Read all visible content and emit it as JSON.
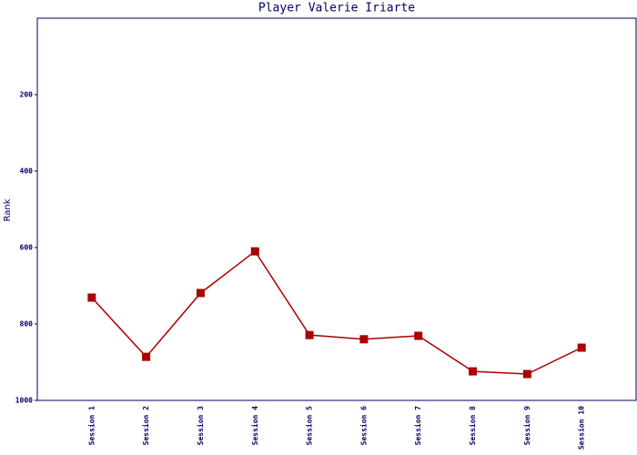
{
  "chart_data": {
    "type": "line",
    "title": "Player Valerie Iriarte",
    "y_label": "Rank",
    "categories": [
      "Session 1",
      "Session 2",
      "Session 3",
      "Session 4",
      "Session 5",
      "Session 6",
      "Session 7",
      "Session 8",
      "Session 9",
      "Session 10"
    ],
    "series": [
      {
        "name": "Rank",
        "color": "#aa0000",
        "values": [
          731,
          886,
          719,
          610,
          829,
          840,
          831,
          924,
          931,
          862
        ]
      }
    ],
    "ylim": [
      1000,
      0
    ],
    "yticks": [
      200,
      400,
      600,
      800,
      1000
    ],
    "grid": false
  }
}
